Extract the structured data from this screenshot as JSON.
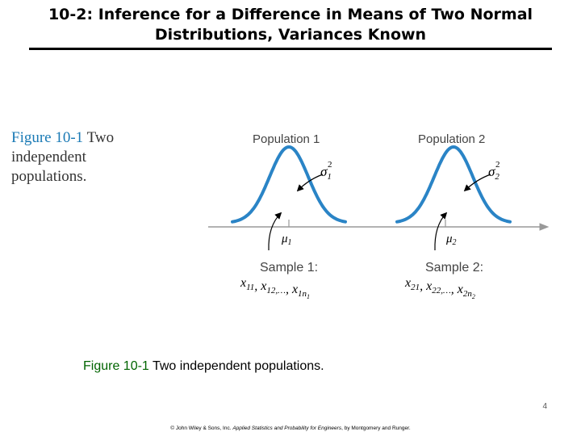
{
  "slide": {
    "title": "10-2:  Inference for a Difference in Means of Two Normal Distributions, Variances Known",
    "page_number": "4",
    "copyright_prefix": "© John Wiley & Sons, Inc.  ",
    "copyright_book": "Applied Statistics and Probability for Engineers",
    "copyright_suffix": ", by Montgomery and Runger."
  },
  "figure": {
    "side_caption_label": "Figure 10-1",
    "side_caption_text": "  Two independent populations.",
    "population1_label": "Population 1",
    "population2_label": "Population 2",
    "sigma1_label": "σ",
    "sigma1_sup": "2",
    "sigma1_sub": "1",
    "sigma2_label": "σ",
    "sigma2_sup": "2",
    "sigma2_sub": "2",
    "mu1_label": "μ",
    "mu1_sub": "1",
    "mu2_label": "μ",
    "mu2_sub": "2",
    "sample1_label": "Sample 1:",
    "sample2_label": "Sample 2:",
    "sample1_values": "x11, x12,…, x1n1",
    "sample2_values": "x21, x22,…, x2n2",
    "curve_color": "#2a84c6",
    "axis_color": "#999999"
  },
  "caption": {
    "label": "Figure 10-1",
    "text": " Two independent populations."
  }
}
